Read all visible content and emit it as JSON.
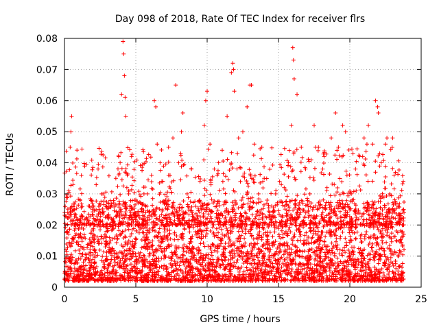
{
  "chart_data": {
    "type": "scatter",
    "title": "Day 098 of 2018, Rate Of TEC Index for receiver flrs",
    "xlabel": "GPS time / hours",
    "ylabel": "ROTI / TECUs",
    "xlim": [
      0,
      25
    ],
    "ylim": [
      0,
      0.08
    ],
    "x_ticks": [
      "0",
      "5",
      "10",
      "15",
      "20",
      "25"
    ],
    "y_ticks": [
      "0",
      "0.01",
      "0.02",
      "0.03",
      "0.04",
      "0.05",
      "0.06",
      "0.07",
      "0.08"
    ],
    "grid": true,
    "marker": "+",
    "color": "#ff0000",
    "series": [
      {
        "x": [
          0.1,
          0.2,
          0.3,
          0.4,
          0.5,
          0.6,
          0.7,
          0.9,
          1.2,
          1.5,
          1.8,
          2.1,
          2.4,
          2.7,
          3.0,
          3.3,
          3.6,
          3.8,
          4.0,
          4.1,
          4.2,
          4.3,
          4.4,
          4.5,
          4.7,
          4.9,
          5.2,
          5.5,
          5.8,
          6.1,
          6.3,
          6.5,
          6.7,
          6.9,
          7.1,
          7.4,
          7.6,
          7.8,
          8.0,
          8.3,
          8.6,
          8.9,
          9.2,
          9.5,
          9.8,
          10.0,
          10.2,
          10.5,
          10.8,
          11.1,
          11.4,
          11.7,
          11.8,
          11.9,
          12.2,
          12.5,
          12.8,
          13.0,
          13.3,
          13.6,
          13.9,
          14.2,
          14.5,
          14.8,
          15.1,
          15.4,
          15.7,
          15.9,
          16.0,
          16.1,
          16.3,
          16.6,
          16.9,
          17.2,
          17.5,
          17.8,
          18.1,
          18.4,
          18.7,
          19.0,
          19.2,
          19.5,
          19.8,
          20.1,
          20.4,
          20.7,
          21.0,
          21.3,
          21.6,
          21.8,
          22.0,
          22.2,
          22.5,
          22.8,
          23.1,
          23.4,
          23.7,
          4.15,
          4.25,
          16.05,
          11.85,
          8.2,
          13.1,
          6.4,
          19.7,
          21.95,
          0.45,
          9.9,
          14.0,
          17.6,
          20.9,
          22.6,
          2.6,
          5.0,
          10.7,
          12.4,
          18.2,
          23.0,
          1.0,
          3.9,
          7.3,
          15.2,
          19.1,
          21.2
        ],
        "y": [
          0.012,
          0.018,
          0.031,
          0.045,
          0.055,
          0.033,
          0.025,
          0.02,
          0.016,
          0.022,
          0.014,
          0.02,
          0.026,
          0.03,
          0.018,
          0.022,
          0.035,
          0.042,
          0.062,
          0.079,
          0.068,
          0.055,
          0.036,
          0.03,
          0.042,
          0.028,
          0.02,
          0.024,
          0.03,
          0.036,
          0.06,
          0.046,
          0.04,
          0.034,
          0.028,
          0.036,
          0.048,
          0.065,
          0.04,
          0.056,
          0.03,
          0.038,
          0.026,
          0.034,
          0.052,
          0.063,
          0.046,
          0.038,
          0.04,
          0.034,
          0.055,
          0.069,
          0.072,
          0.063,
          0.048,
          0.05,
          0.058,
          0.065,
          0.046,
          0.03,
          0.034,
          0.028,
          0.022,
          0.03,
          0.014,
          0.032,
          0.04,
          0.052,
          0.077,
          0.067,
          0.062,
          0.045,
          0.038,
          0.03,
          0.052,
          0.045,
          0.038,
          0.032,
          0.048,
          0.056,
          0.045,
          0.052,
          0.036,
          0.03,
          0.038,
          0.042,
          0.048,
          0.052,
          0.046,
          0.06,
          0.056,
          0.04,
          0.046,
          0.03,
          0.036,
          0.026,
          0.02,
          0.075,
          0.061,
          0.073,
          0.07,
          0.05,
          0.065,
          0.058,
          0.05,
          0.058,
          0.05,
          0.06,
          0.035,
          0.045,
          0.042,
          0.048,
          0.03,
          0.028,
          0.036,
          0.028,
          0.042,
          0.048,
          0.016,
          0.04,
          0.036,
          0.033,
          0.044,
          0.046
        ]
      }
    ],
    "baseline_band": {
      "y_min": 0.002,
      "y_max": 0.028,
      "x_min": 0.0,
      "x_max": 23.8
    }
  }
}
